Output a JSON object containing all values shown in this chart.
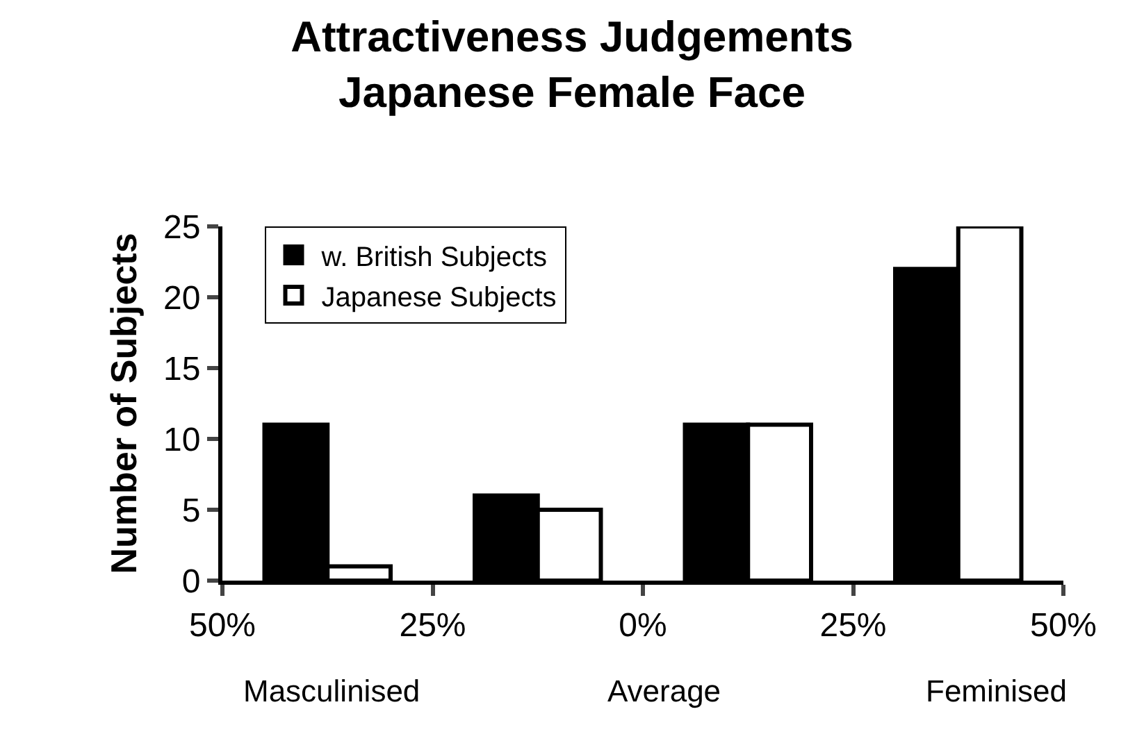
{
  "chart_data": {
    "type": "bar",
    "title": "Attractiveness Judgements\nJapanese Female Face",
    "ylabel": "Number of Subjects",
    "x": [
      -37.5,
      -12.5,
      12.5,
      37.5
    ],
    "series": [
      {
        "name": "w. British Subjects",
        "color": "#000000",
        "values": [
          11,
          6,
          11,
          22
        ]
      },
      {
        "name": "Japanese Subjects",
        "color": "#ffffff",
        "values": [
          1,
          5,
          11,
          25
        ]
      }
    ],
    "xlim": [
      -50,
      50
    ],
    "xticks": [
      {
        "value": -50,
        "label": "50%"
      },
      {
        "value": -25,
        "label": "25%"
      },
      {
        "value": 0,
        "label": "0%"
      },
      {
        "value": 25,
        "label": "25%"
      },
      {
        "value": 50,
        "label": "50%"
      }
    ],
    "ylim": [
      0,
      25
    ],
    "yticks": [
      0,
      5,
      10,
      15,
      20,
      25
    ],
    "annotations": [
      "Masculinised",
      "Average",
      "Feminised"
    ],
    "legend": "top left"
  }
}
